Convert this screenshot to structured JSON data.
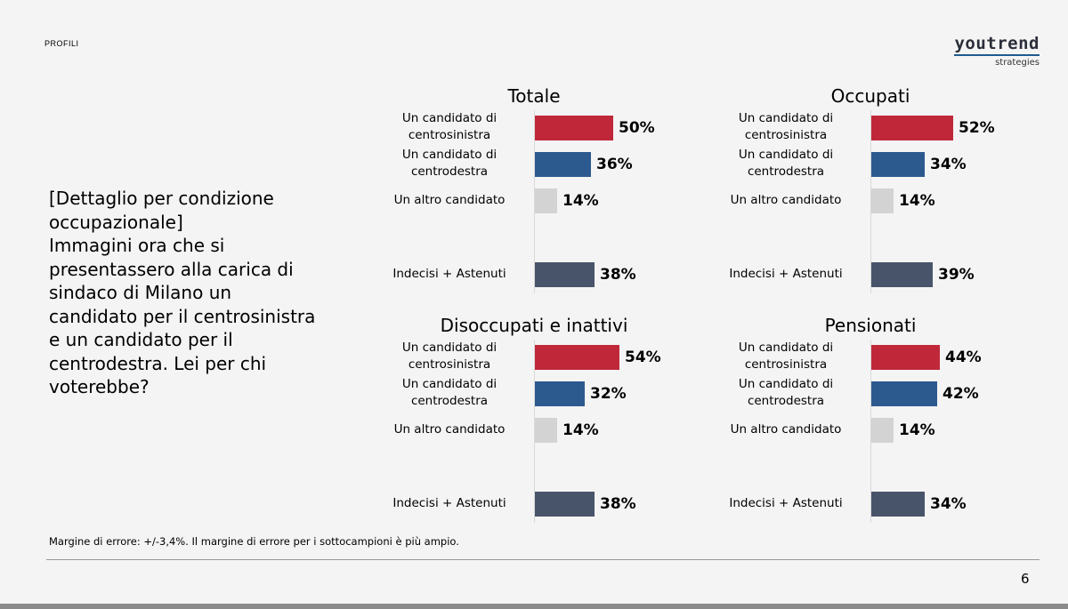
{
  "section": "PROFILI",
  "logo": {
    "word": "youtrend",
    "sub": "strategies"
  },
  "question_lines": [
    "[Dettaglio per condizione",
    "occupazionale]",
    "Immagini ora che si",
    "presentassero alla carica di",
    "sindaco di Milano un",
    "candidato per il centrosinistra",
    "e un candidato per il",
    "centrodestra. Lei per chi",
    "voterebbe?"
  ],
  "note": "Margine di errore: +/-3,4%. Il margine di errore per i sottocampioni è più ampio.",
  "page_number": "6",
  "colors": {
    "Un candidato di centrosinistra": "#c0283a",
    "Un candidato di centrodestra": "#2d5a8e",
    "Un altro candidato": "#d3d3d3",
    "Indecisi + Astenuti": "#48546a"
  },
  "chart_data": [
    {
      "type": "bar",
      "orientation": "horizontal",
      "title": "Totale",
      "categories": [
        "Un candidato di centrosinistra",
        "Un candidato di centrodestra",
        "Un altro candidato",
        "Indecisi + Astenuti"
      ],
      "category_lines": [
        [
          "Un candidato di",
          "centrosinistra"
        ],
        [
          "Un candidato di",
          "centrodestra"
        ],
        [
          "Un altro candidato"
        ],
        [
          "Indecisi + Astenuti"
        ]
      ],
      "values": [
        50,
        36,
        14,
        38
      ],
      "labels": [
        "50%",
        "36%",
        "14%",
        "38%"
      ]
    },
    {
      "type": "bar",
      "orientation": "horizontal",
      "title": "Occupati",
      "categories": [
        "Un candidato di centrosinistra",
        "Un candidato di centrodestra",
        "Un altro candidato",
        "Indecisi + Astenuti"
      ],
      "category_lines": [
        [
          "Un candidato di",
          "centrosinistra"
        ],
        [
          "Un candidato di",
          "centrodestra"
        ],
        [
          "Un altro candidato"
        ],
        [
          "Indecisi + Astenuti"
        ]
      ],
      "values": [
        52,
        34,
        14,
        39
      ],
      "labels": [
        "52%",
        "34%",
        "14%",
        "39%"
      ]
    },
    {
      "type": "bar",
      "orientation": "horizontal",
      "title": "Disoccupati e inattivi",
      "categories": [
        "Un candidato di centrosinistra",
        "Un candidato di centrodestra",
        "Un altro candidato",
        "Indecisi + Astenuti"
      ],
      "category_lines": [
        [
          "Un candidato di",
          "centrosinistra"
        ],
        [
          "Un candidato di",
          "centrodestra"
        ],
        [
          "Un altro candidato"
        ],
        [
          "Indecisi + Astenuti"
        ]
      ],
      "values": [
        54,
        32,
        14,
        38
      ],
      "labels": [
        "54%",
        "32%",
        "14%",
        "38%"
      ]
    },
    {
      "type": "bar",
      "orientation": "horizontal",
      "title": "Pensionati",
      "categories": [
        "Un candidato di centrosinistra",
        "Un candidato di centrodestra",
        "Un altro candidato",
        "Indecisi + Astenuti"
      ],
      "category_lines": [
        [
          "Un candidato di",
          "centrosinistra"
        ],
        [
          "Un candidato di",
          "centrodestra"
        ],
        [
          "Un altro candidato"
        ],
        [
          "Indecisi + Astenuti"
        ]
      ],
      "values": [
        44,
        42,
        14,
        34
      ],
      "labels": [
        "44%",
        "42%",
        "14%",
        "34%"
      ]
    }
  ]
}
